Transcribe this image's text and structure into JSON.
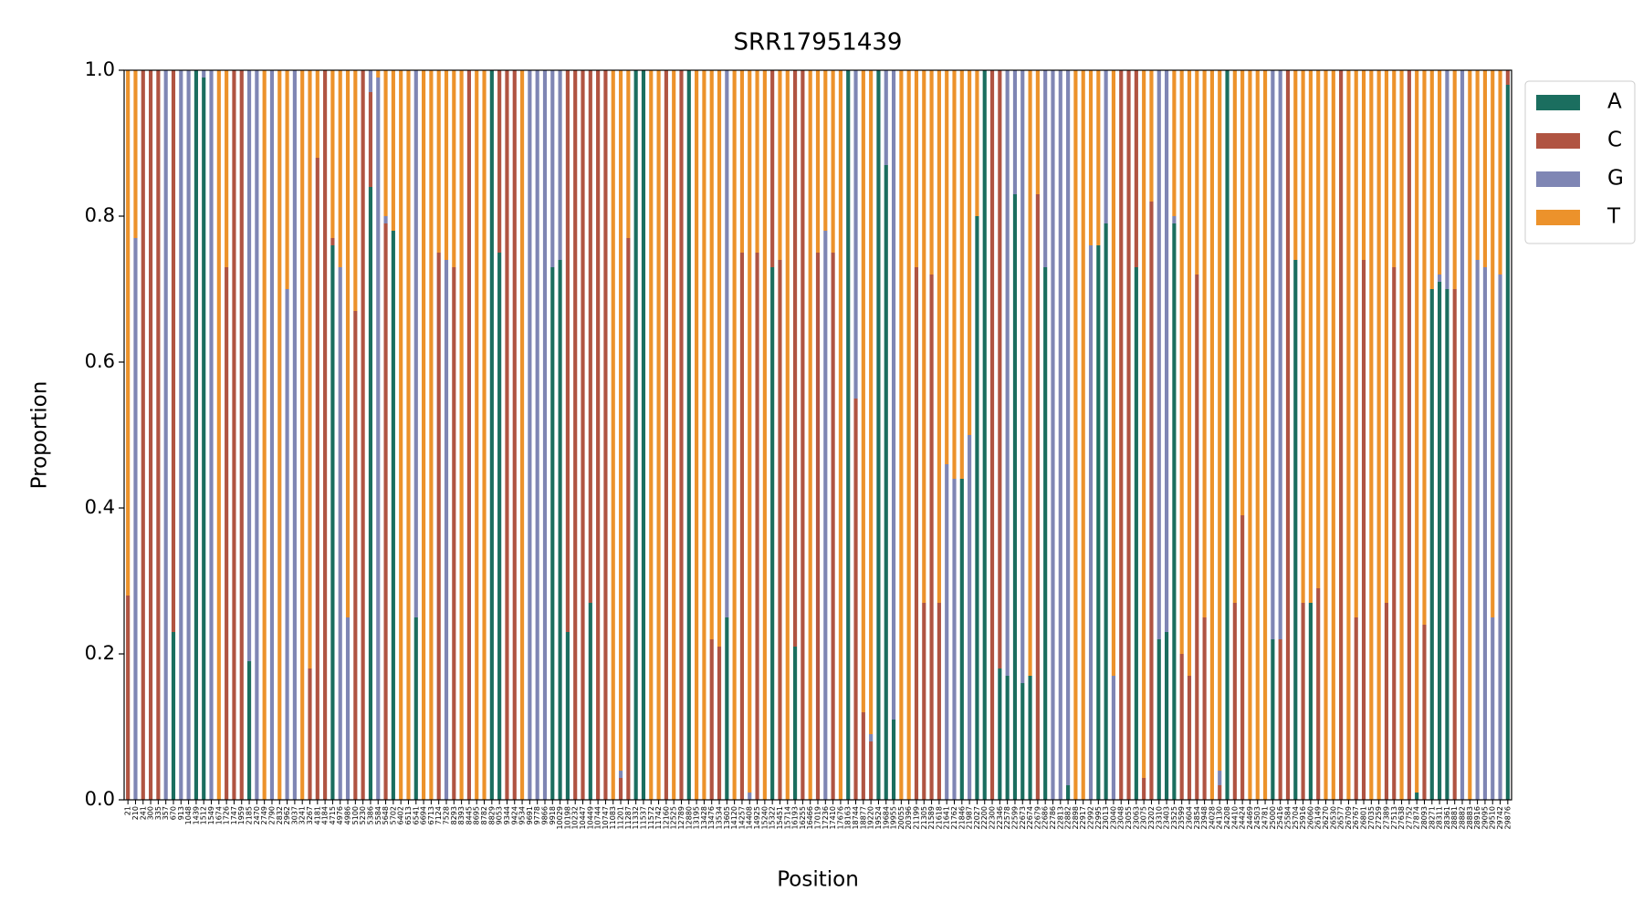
{
  "chart_data": {
    "type": "stacked_bar",
    "title": "SRR17951439",
    "x_label": "Position",
    "y_label": "Proportion",
    "ylim": [
      0,
      1
    ],
    "yticks": [
      {
        "value": 0,
        "label": "0.0"
      },
      0.2,
      0.4,
      0.6,
      0.8,
      {
        "value": 1,
        "label": "1.0"
      }
    ],
    "categories": [
      "21",
      "210",
      "241",
      "300",
      "335",
      "357",
      "670",
      "913",
      "1048",
      "1439",
      "1512",
      "1549",
      "1674",
      "1726",
      "1747",
      "1959",
      "2185",
      "2470",
      "2749",
      "2790",
      "2832",
      "2962",
      "3037",
      "3241",
      "3267",
      "4181",
      "4184",
      "4715",
      "4976",
      "4986",
      "5100",
      "5230",
      "5386",
      "5584",
      "5648",
      "5702",
      "6402",
      "6513",
      "6541",
      "6694",
      "6713",
      "7124",
      "7528",
      "8293",
      "8393",
      "8445",
      "8695",
      "8782",
      "8829",
      "9053",
      "9344",
      "9424",
      "9534",
      "9691",
      "9778",
      "9866",
      "9918",
      "10029",
      "10198",
      "10232",
      "10447",
      "10449",
      "10744",
      "10747",
      "11083",
      "11201",
      "11287",
      "11332",
      "11537",
      "11572",
      "11742",
      "12160",
      "12525",
      "12789",
      "12880",
      "13195",
      "13428",
      "13476",
      "13534",
      "13605",
      "14120",
      "14257",
      "14408",
      "14925",
      "15240",
      "15322",
      "15451",
      "15714",
      "16193",
      "16255",
      "16466",
      "17019",
      "17236",
      "17410",
      "17676",
      "18163",
      "18744",
      "18877",
      "19220",
      "19524",
      "19684",
      "19955",
      "20055",
      "20396",
      "21199",
      "21305",
      "21589",
      "21618",
      "21641",
      "21762",
      "21846",
      "21987",
      "22027",
      "22200",
      "22300",
      "22346",
      "22578",
      "22599",
      "22673",
      "22674",
      "22679",
      "22686",
      "22786",
      "22813",
      "22882",
      "22898",
      "22917",
      "22992",
      "22995",
      "23013",
      "23040",
      "23048",
      "23055",
      "23063",
      "23075",
      "23202",
      "23310",
      "23403",
      "23525",
      "23599",
      "23604",
      "23854",
      "23948",
      "24028",
      "24130",
      "24208",
      "24410",
      "24424",
      "24469",
      "24503",
      "24781",
      "25000",
      "25416",
      "25584",
      "25704",
      "25916",
      "26060",
      "26149",
      "26270",
      "26530",
      "26577",
      "26709",
      "26767",
      "26801",
      "27035",
      "27259",
      "27389",
      "27513",
      "27638",
      "27752",
      "27874",
      "28093",
      "28271",
      "28311",
      "28361",
      "28881",
      "28882",
      "28883",
      "28916",
      "29095",
      "29510",
      "29742",
      "29876"
    ],
    "series": [
      {
        "name": "A",
        "color": "#1b6e5f",
        "values": [
          0,
          0,
          0,
          0,
          0,
          0,
          0.23,
          0,
          0,
          1,
          0.99,
          0,
          0,
          0,
          0,
          0,
          0.19,
          0,
          0,
          0,
          0,
          0,
          0,
          0,
          0,
          0,
          0,
          0.76,
          0,
          0,
          0,
          0,
          0.84,
          0,
          0,
          0.78,
          0,
          0,
          0.25,
          0,
          0,
          0,
          0,
          0,
          0,
          0,
          0,
          0,
          1,
          0.75,
          0,
          0,
          0,
          0,
          0,
          0,
          0.73,
          0.74,
          0.23,
          0,
          0,
          0.27,
          0,
          0,
          0,
          0,
          0,
          1,
          1,
          0,
          0,
          0,
          0,
          0,
          1,
          0,
          0,
          0,
          0,
          0.25,
          0,
          0,
          0,
          0,
          0,
          0.73,
          0,
          0,
          0.21,
          0,
          0,
          0,
          0,
          0,
          0,
          1,
          0,
          0,
          0,
          1,
          0.87,
          0.11,
          0,
          0,
          0,
          0,
          0,
          0,
          0,
          0,
          0.44,
          0,
          0.8,
          1,
          0,
          0.18,
          0.17,
          0.83,
          0.16,
          0.17,
          0,
          0.73,
          0,
          0,
          0.02,
          0,
          0,
          0,
          0.76,
          0.79,
          0,
          0,
          0,
          0.73,
          0,
          0,
          0.22,
          0.23,
          0.79,
          0,
          0,
          0,
          0,
          0,
          0,
          1,
          0,
          0,
          0,
          0,
          0,
          0.22,
          0,
          0,
          0.74,
          0,
          0.27,
          0,
          0,
          0,
          0,
          0,
          0,
          0,
          0,
          0,
          0,
          0,
          0,
          0,
          0.01,
          0,
          0.7,
          0.71,
          0.7,
          0,
          0,
          0,
          0,
          0,
          0,
          0,
          0.98
        ]
      },
      {
        "name": "C",
        "color": "#b05442",
        "values": [
          0.28,
          0,
          1,
          1,
          1,
          0,
          0.77,
          0,
          0,
          0,
          0,
          0,
          0,
          0.73,
          1,
          1,
          0,
          0,
          0,
          0,
          0,
          0,
          0,
          0,
          0.18,
          0.88,
          1,
          0.01,
          0,
          0,
          0.67,
          1,
          0.13,
          0,
          0.79,
          0,
          0,
          0,
          0,
          0,
          0,
          0.75,
          0,
          0.73,
          0,
          1,
          0,
          0,
          0,
          0.25,
          1,
          1,
          0,
          0,
          0,
          0,
          0,
          0,
          0.77,
          1,
          1,
          0.73,
          1,
          1,
          0,
          0.03,
          0.77,
          0,
          0,
          0,
          0,
          1,
          0,
          1,
          0,
          0,
          0,
          0.22,
          0.21,
          0,
          0,
          0.75,
          0,
          0.75,
          0,
          0.27,
          0.74,
          0,
          0.79,
          1,
          0,
          0.75,
          0,
          0.75,
          0,
          0,
          0.55,
          0.12,
          0.08,
          0,
          0,
          0,
          0,
          0,
          0.73,
          0.27,
          0.72,
          0.27,
          0,
          0,
          0,
          0,
          0,
          0,
          1,
          0.82,
          0,
          0,
          0,
          0,
          0.83,
          0,
          0,
          0,
          0,
          0,
          0,
          0,
          0,
          0,
          0,
          1,
          1,
          0.27,
          0.03,
          0.82,
          0,
          0,
          0,
          0.2,
          0.17,
          0.72,
          0.25,
          0,
          0.02,
          0,
          0.27,
          0.39,
          0,
          0,
          0,
          0,
          0.22,
          1,
          0,
          0.27,
          0,
          0.29,
          0,
          0,
          1,
          0,
          0.25,
          0.74,
          0,
          0,
          0.27,
          0.73,
          0,
          1,
          0,
          0.24,
          0,
          0,
          0,
          0.7,
          0,
          0,
          0,
          0,
          0,
          0,
          0.02
        ]
      },
      {
        "name": "G",
        "color": "#7f86b4",
        "values": [
          0,
          0.77,
          0,
          0,
          0,
          1,
          0,
          1,
          1,
          0,
          0.01,
          1,
          0,
          0,
          0,
          0,
          0.81,
          1,
          0,
          1,
          0,
          0.7,
          1,
          0,
          0,
          0,
          0,
          0,
          0.73,
          0.25,
          0,
          0,
          0.03,
          0.99,
          0.01,
          0,
          0,
          0,
          0.75,
          0,
          0,
          0,
          0.74,
          0,
          0,
          0,
          0,
          0,
          0,
          0,
          0,
          0,
          0,
          1,
          1,
          1,
          0.27,
          0.26,
          0,
          0,
          0,
          0,
          0,
          0,
          0,
          0.01,
          0,
          0,
          0,
          0,
          0,
          0,
          0,
          0,
          0,
          0,
          0,
          0,
          0,
          0.75,
          0,
          0,
          0.01,
          0,
          0,
          0,
          0,
          0,
          0,
          0,
          0,
          0,
          0.78,
          0,
          0,
          0,
          0.45,
          0,
          0.01,
          0,
          0.13,
          0.89,
          0,
          0,
          0,
          0,
          0,
          0,
          0.46,
          0.44,
          0,
          0.5,
          0,
          0,
          0,
          0,
          0.83,
          0.17,
          0.84,
          0,
          0,
          0.27,
          1,
          1,
          0.98,
          0,
          0,
          0.76,
          0,
          0.21,
          0.17,
          0,
          0,
          0,
          0,
          0,
          0.78,
          0.77,
          0.01,
          0,
          0,
          0,
          0,
          0,
          0.02,
          0,
          0,
          0,
          0,
          0,
          0,
          0.78,
          0.78,
          0,
          0,
          0,
          0,
          0,
          0,
          0,
          0,
          0,
          0,
          0,
          0,
          0,
          0,
          0,
          0,
          0,
          0,
          0,
          0,
          0.01,
          0.3,
          0,
          1,
          0,
          0.74,
          0.73,
          0.25,
          0.72,
          0
        ]
      },
      {
        "name": "T",
        "color": "#ec922b",
        "values": [
          0.72,
          0.23,
          0,
          0,
          0,
          0,
          0,
          0,
          0,
          0,
          0,
          0,
          1,
          0.27,
          0,
          0,
          0,
          0,
          1,
          0,
          1,
          0.3,
          0,
          1,
          0.82,
          0.12,
          0,
          0.23,
          0.27,
          0.75,
          0.33,
          0,
          0,
          0.01,
          0.2,
          0.22,
          1,
          1,
          0,
          1,
          1,
          0.25,
          0.26,
          0.27,
          1,
          0,
          1,
          1,
          0,
          0,
          0,
          0,
          1,
          0,
          0,
          0,
          0,
          0,
          0,
          0,
          0,
          0,
          0,
          0,
          1,
          0.96,
          0.23,
          0,
          0,
          1,
          1,
          0,
          1,
          0,
          0,
          1,
          1,
          0.78,
          0.79,
          0,
          1,
          0.25,
          0.99,
          0.25,
          1,
          0,
          0.26,
          1,
          0,
          0,
          1,
          0.25,
          0.22,
          0.25,
          1,
          0,
          0,
          0.88,
          0.91,
          0,
          0,
          0,
          1,
          1,
          0.27,
          0.73,
          0.28,
          0.73,
          0.54,
          0.56,
          0.56,
          0.5,
          0.2,
          0,
          0,
          0,
          0,
          0,
          0,
          0.83,
          0.17,
          0,
          0,
          0,
          0,
          1,
          1,
          0.24,
          0.24,
          0,
          0.83,
          0,
          0,
          0,
          0.97,
          0.18,
          0,
          0,
          0.2,
          0.8,
          0.83,
          0.28,
          0.75,
          1,
          0.96,
          0,
          0.73,
          0.61,
          1,
          1,
          1,
          0,
          0,
          0,
          0.26,
          0.73,
          0.73,
          0.71,
          1,
          1,
          0,
          1,
          0.75,
          0.26,
          1,
          1,
          0.73,
          0.27,
          1,
          0,
          0.99,
          0.76,
          0.3,
          0.28,
          0,
          0.3,
          0,
          1,
          0.26,
          0.27,
          0.75,
          0.28,
          0
        ]
      }
    ]
  }
}
